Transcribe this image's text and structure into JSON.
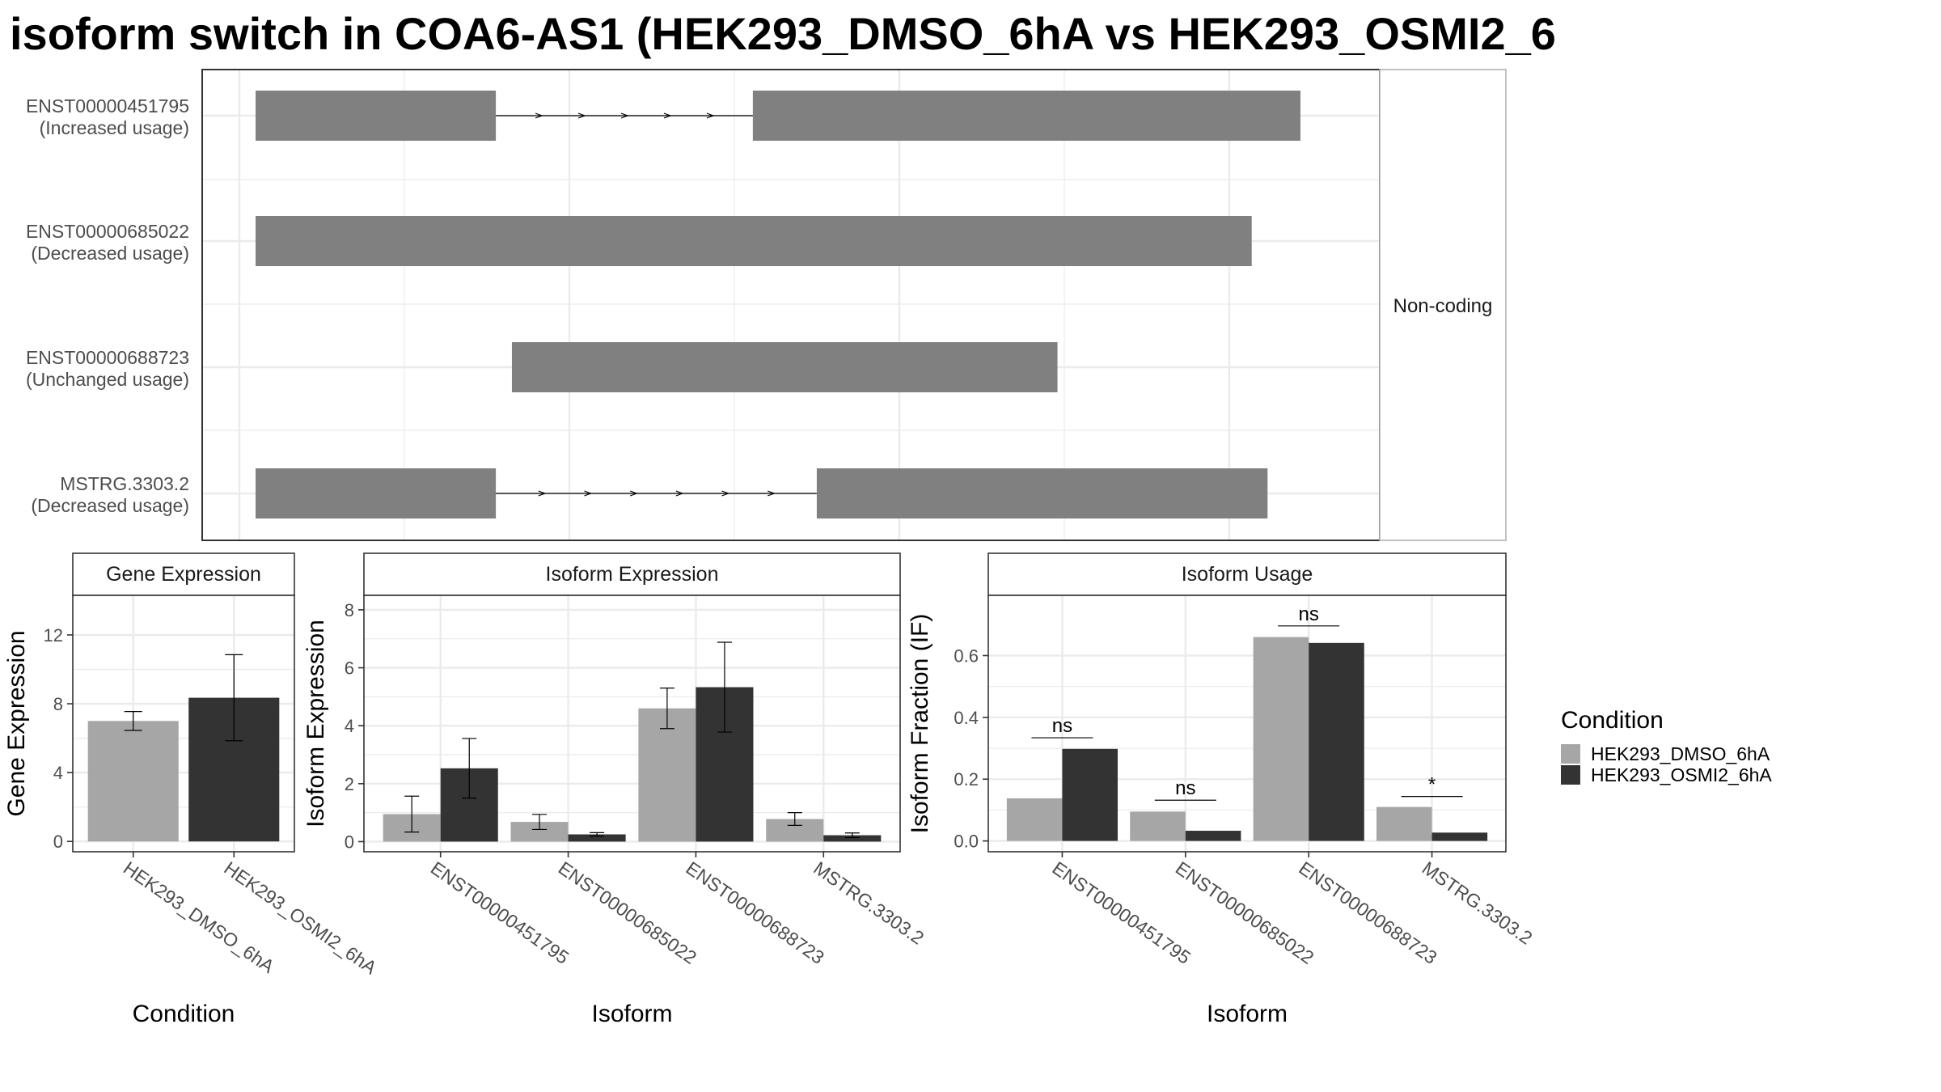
{
  "title": "isoform switch in COA6-AS1 (HEK293_DMSO_6hA vs HEK293_OSMI2_6",
  "colors": {
    "dmso": "#a6a6a6",
    "osmi2": "#333333",
    "structure": "#808080",
    "grid": "#ebebeb",
    "panel_border": "#333333",
    "strip_fill": "#ffffff"
  },
  "chart_data": [
    {
      "type": "isoform-structure",
      "facet_label": "Non-coding",
      "transcripts": [
        {
          "id": "ENST00000451795",
          "usage": "(Increased usage)",
          "exons": [
            [
              0.0,
              0.2244
            ],
            [
              0.4644,
              0.9758
            ]
          ],
          "introns": [
            [
              0.2244,
              0.4644
            ]
          ]
        },
        {
          "id": "ENST00000685022",
          "usage": "(Decreased usage)",
          "exons": [
            [
              0.0,
              0.9303
            ]
          ],
          "introns": []
        },
        {
          "id": "ENST00000688723",
          "usage": "(Unchanged usage)",
          "exons": [
            [
              0.2394,
              0.7489
            ]
          ],
          "introns": []
        },
        {
          "id": "MSTRG.3303.2",
          "usage": "(Decreased usage)",
          "exons": [
            [
              0.0,
              0.2244
            ],
            [
              0.5241,
              0.9451
            ]
          ],
          "introns": [
            [
              0.2244,
              0.5241
            ]
          ]
        }
      ]
    },
    {
      "type": "bar",
      "strip": "Gene Expression",
      "xlabel": "Condition",
      "ylabel": "Gene Expression",
      "ylim": [
        -0.6,
        14.3
      ],
      "yticks": [
        0,
        4,
        8,
        12
      ],
      "categories": [
        "HEK293_DMSO_6hA",
        "HEK293_OSMI2_6hA"
      ],
      "values": [
        7.0,
        8.35
      ],
      "err_low": [
        6.45,
        5.85
      ],
      "err_high": [
        7.55,
        10.85
      ]
    },
    {
      "type": "bar",
      "strip": "Isoform Expression",
      "xlabel": "Isoform",
      "ylabel": "Isoform Expression",
      "ylim": [
        -0.35,
        8.5
      ],
      "yticks": [
        0,
        2,
        4,
        6,
        8
      ],
      "categories": [
        "ENST00000451795",
        "ENST00000685022",
        "ENST00000688723",
        "MSTRG.3303.2"
      ],
      "series": [
        {
          "name": "HEK293_DMSO_6hA",
          "values": [
            0.95,
            0.68,
            4.6,
            0.78
          ],
          "err_low": [
            0.33,
            0.42,
            3.9,
            0.56
          ],
          "err_high": [
            1.57,
            0.94,
            5.3,
            1.0
          ]
        },
        {
          "name": "HEK293_OSMI2_6hA",
          "values": [
            2.53,
            0.25,
            5.33,
            0.22
          ],
          "err_low": [
            1.5,
            0.19,
            3.78,
            0.14
          ],
          "err_high": [
            3.56,
            0.31,
            6.88,
            0.3
          ]
        }
      ]
    },
    {
      "type": "bar",
      "strip": "Isoform Usage",
      "xlabel": "Isoform",
      "ylabel": "Isoform Fraction (IF)",
      "ylim": [
        -0.035,
        0.795
      ],
      "yticks": [
        0.0,
        0.2,
        0.4,
        0.6
      ],
      "ytick_labels": [
        "0.0",
        "0.2",
        "0.4",
        "0.6"
      ],
      "categories": [
        "ENST00000451795",
        "ENST00000685022",
        "ENST00000688723",
        "MSTRG.3303.2"
      ],
      "series": [
        {
          "name": "HEK293_DMSO_6hA",
          "values": [
            0.138,
            0.095,
            0.66,
            0.11
          ]
        },
        {
          "name": "HEK293_OSMI2_6hA",
          "values": [
            0.298,
            0.033,
            0.641,
            0.027
          ]
        }
      ],
      "significance": [
        "ns",
        "ns",
        "ns",
        "*"
      ],
      "sig_heights": [
        0.334,
        0.132,
        0.696,
        0.144
      ]
    }
  ],
  "legend": {
    "title": "Condition",
    "entries": [
      "HEK293_DMSO_6hA",
      "HEK293_OSMI2_6hA"
    ]
  }
}
